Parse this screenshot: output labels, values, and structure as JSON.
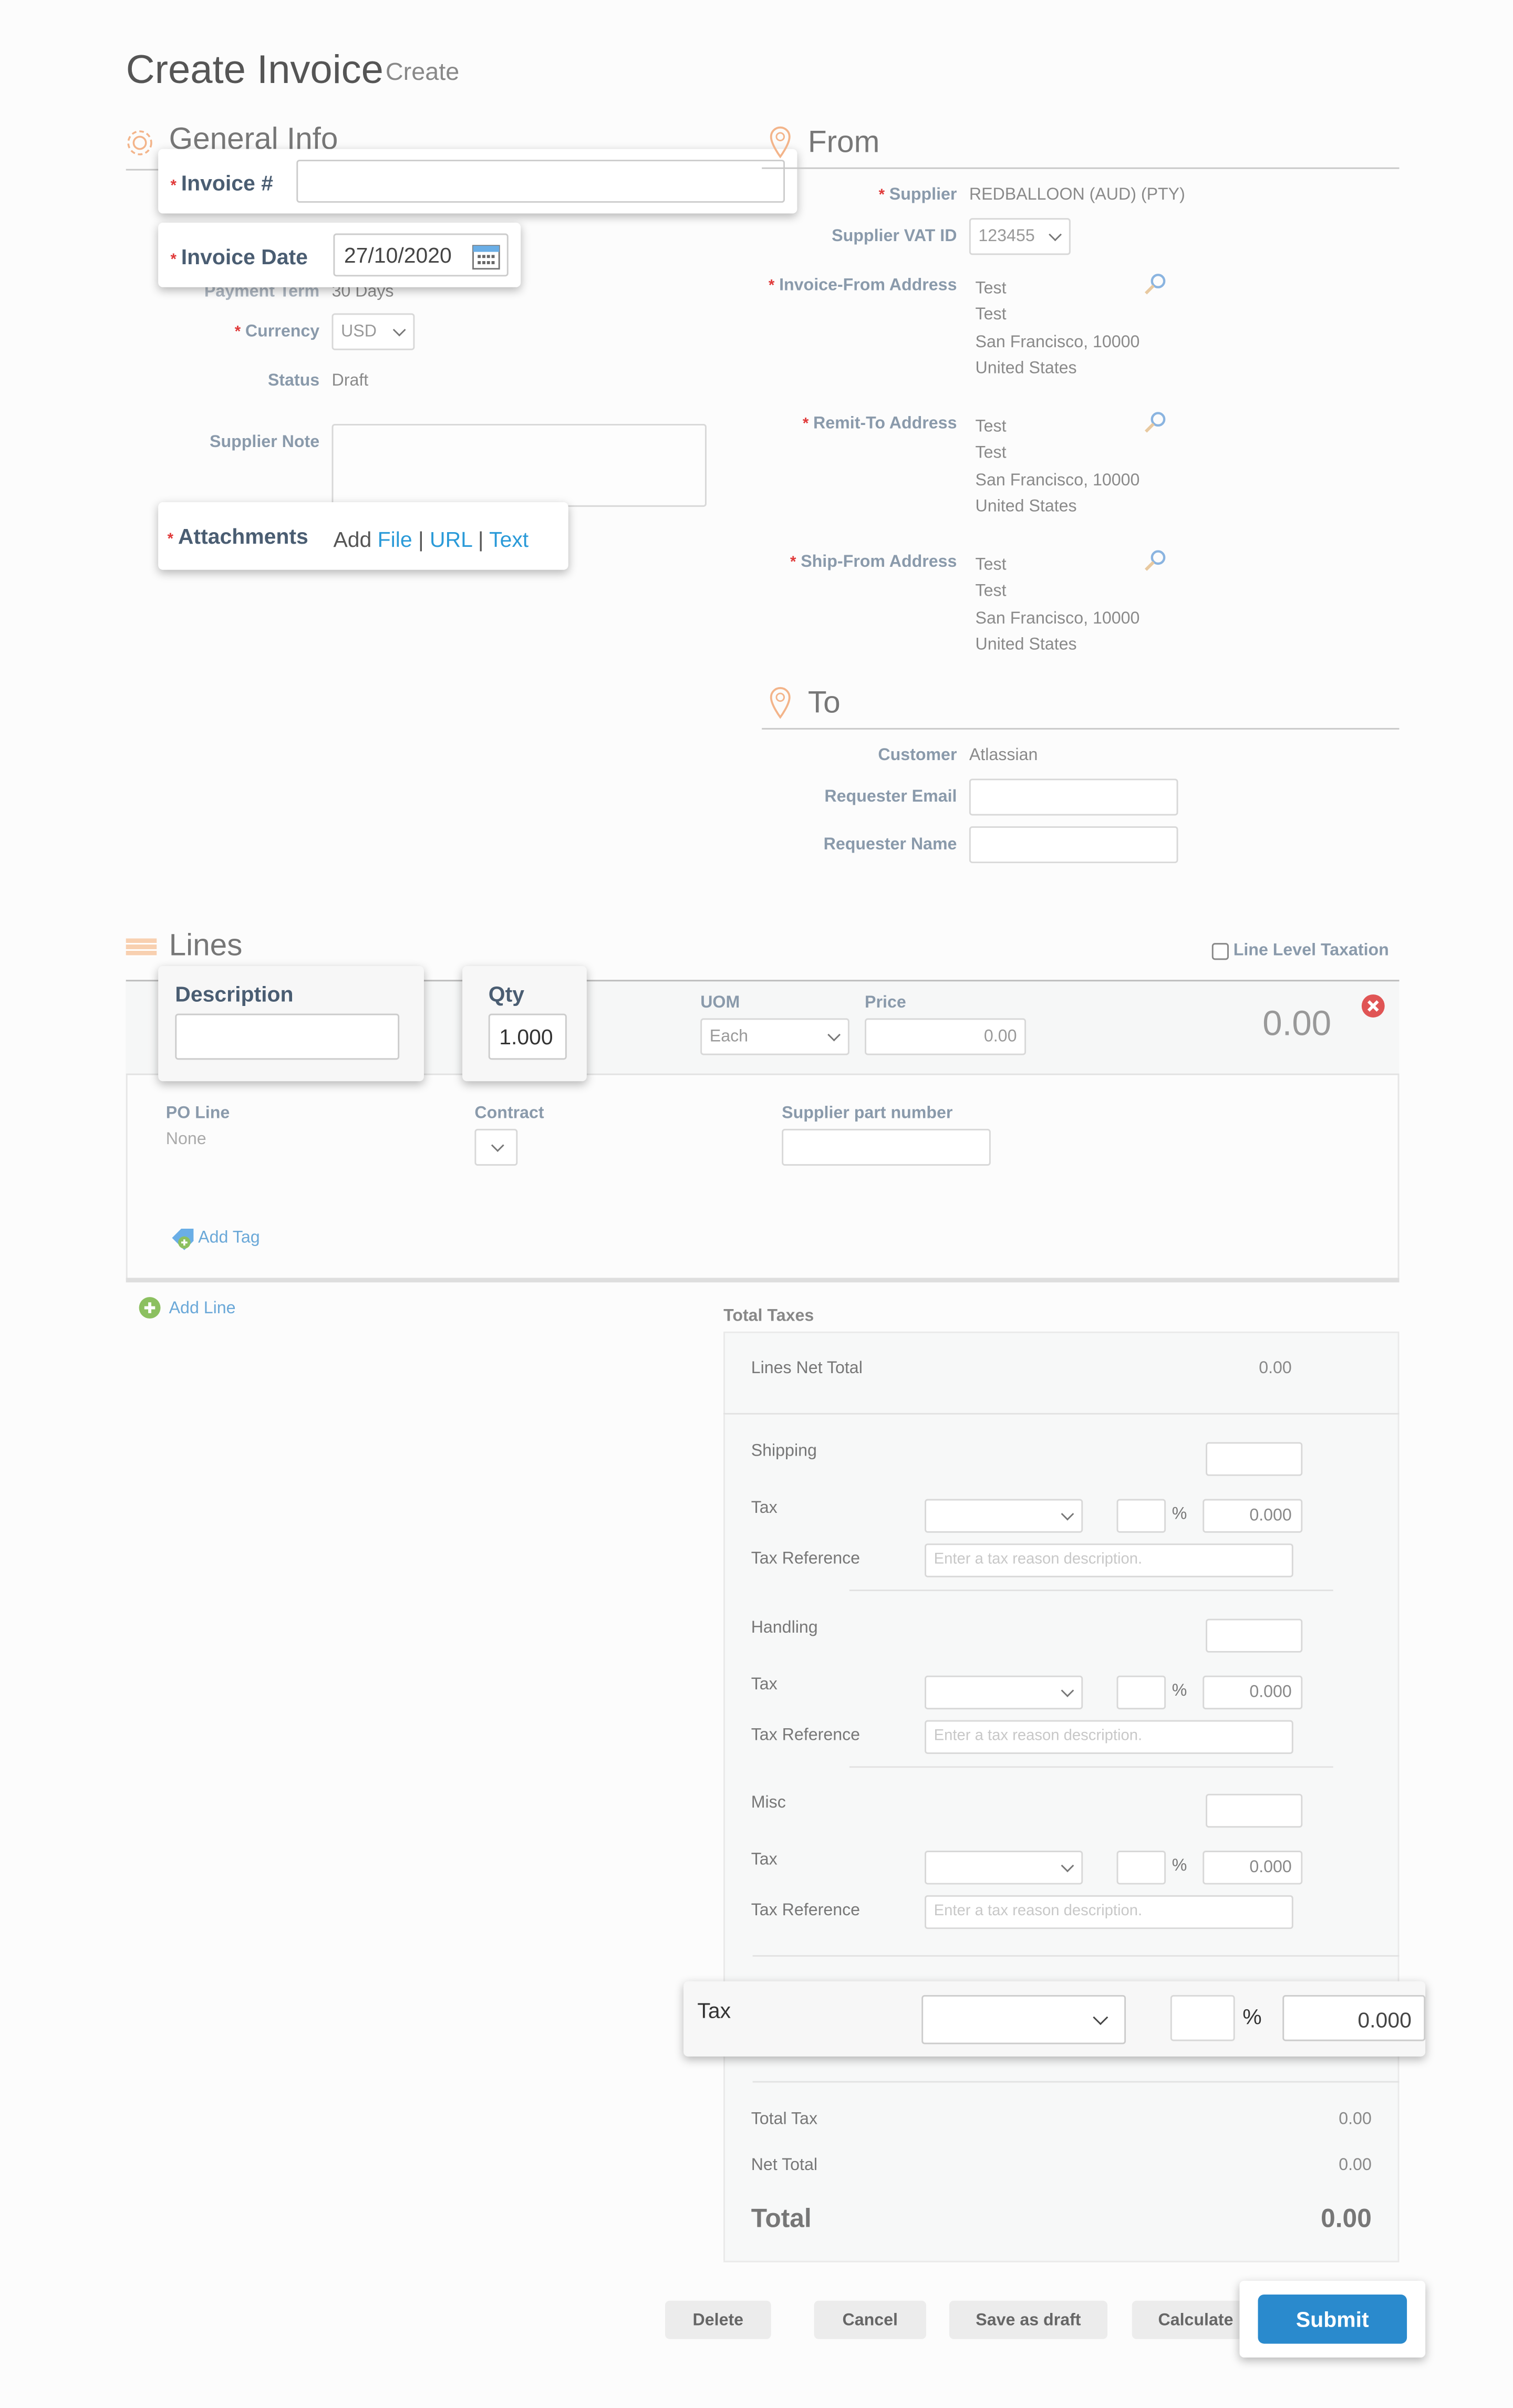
{
  "header": {
    "title": "Create Invoice",
    "subtitle": "Create"
  },
  "general": {
    "title": "General Info",
    "invoice_no_label": "Invoice #",
    "invoice_no_value": "",
    "invoice_date_label": "Invoice Date",
    "invoice_date_value": "27/10/2020",
    "payment_term_label": "Payment Term",
    "payment_term_value": "30 Days",
    "currency_label": "Currency",
    "currency_value": "USD",
    "status_label": "Status",
    "status_value": "Draft",
    "supplier_note_label": "Supplier Note",
    "attachments_label": "Attachments",
    "attachments_add": "Add",
    "attachments_file": "File",
    "attachments_url": "URL",
    "attachments_text": "Text",
    "separator": "|"
  },
  "from": {
    "title": "From",
    "supplier_label": "Supplier",
    "supplier_value": "REDBALLOON (AUD) (PTY)",
    "vat_label": "Supplier VAT ID",
    "vat_value": "123455",
    "addresses": [
      {
        "label": "Invoice-From Address",
        "lines": [
          "Test",
          "Test",
          "San Francisco, 10000",
          "United States"
        ]
      },
      {
        "label": "Remit-To Address",
        "lines": [
          "Test",
          "Test",
          "San Francisco, 10000",
          "United States"
        ]
      },
      {
        "label": "Ship-From Address",
        "lines": [
          "Test",
          "Test",
          "San Francisco, 10000",
          "United States"
        ]
      }
    ]
  },
  "to": {
    "title": "To",
    "customer_label": "Customer",
    "customer_value": "Atlassian",
    "email_label": "Requester Email",
    "name_label": "Requester Name"
  },
  "lines": {
    "title": "Lines",
    "line_level_taxation": "Line Level Taxation",
    "description_label": "Description",
    "qty_label": "Qty",
    "qty_value": "1.000",
    "uom_label": "UOM",
    "uom_value": "Each",
    "price_label": "Price",
    "price_value": "0.00",
    "line_total": "0.00",
    "po_line_label": "PO Line",
    "po_line_value": "None",
    "contract_label": "Contract",
    "supplier_part_label": "Supplier part number",
    "add_tag": "Add Tag",
    "add_line": "Add Line"
  },
  "totals": {
    "title": "Total Taxes",
    "lines_net_total_label": "Lines Net Total",
    "lines_net_total_value": "0.00",
    "tax_label": "Tax",
    "tax_ref_label": "Tax Reference",
    "tax_ref_placeholder": "Enter a tax reason description.",
    "percent": "%",
    "charges": [
      {
        "label": "Shipping",
        "tax_amount": "0.000"
      },
      {
        "label": "Handling",
        "tax_amount": "0.000"
      },
      {
        "label": "Misc",
        "tax_amount": "0.000"
      }
    ],
    "invoice_tax_label": "Tax",
    "invoice_tax_amount": "0.000",
    "total_tax_label": "Total Tax",
    "total_tax_value": "0.00",
    "net_total_label": "Net Total",
    "net_total_value": "0.00",
    "total_label": "Total",
    "total_value": "0.00"
  },
  "actions": {
    "delete": "Delete",
    "cancel": "Cancel",
    "save_draft": "Save as draft",
    "calculate": "Calculate",
    "submit": "Submit"
  },
  "colors": {
    "accent": "#2a8acd",
    "required": "#e03a3a",
    "link": "#2a9ad8",
    "section_icon": "#f3a46a"
  }
}
